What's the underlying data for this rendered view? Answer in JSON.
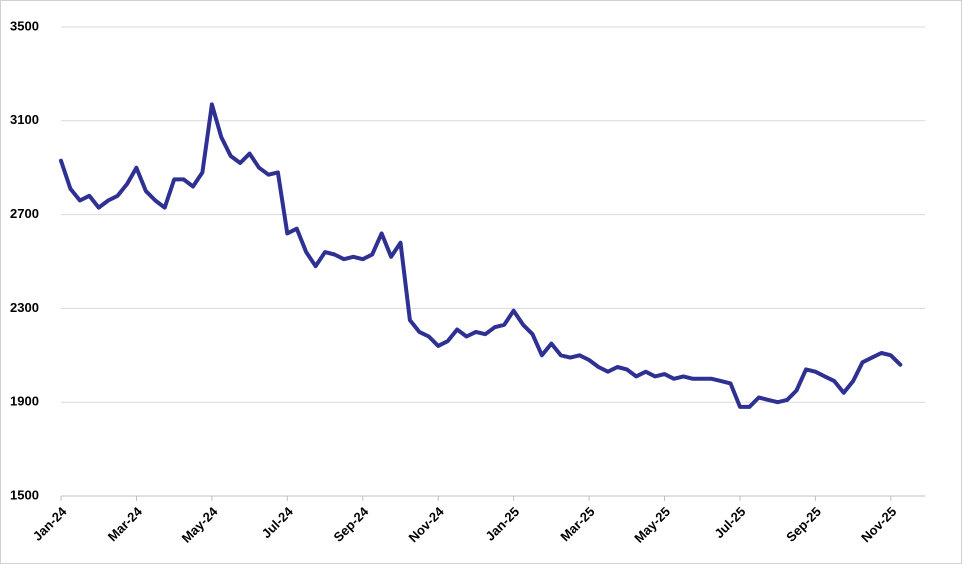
{
  "chart_data": {
    "type": "line",
    "categories": [
      "Jan-24",
      null,
      null,
      null,
      null,
      null,
      null,
      null,
      "Mar-24",
      null,
      null,
      null,
      null,
      null,
      null,
      null,
      "May-24",
      null,
      null,
      null,
      null,
      null,
      null,
      null,
      "Jul-24",
      null,
      null,
      null,
      null,
      null,
      null,
      null,
      "Sep-24",
      null,
      null,
      null,
      null,
      null,
      null,
      null,
      "Nov-24",
      null,
      null,
      null,
      null,
      null,
      null,
      null,
      "Jan-25",
      null,
      null,
      null,
      null,
      null,
      null,
      null,
      "Mar-25",
      null,
      null,
      null,
      null,
      null,
      null,
      null,
      "May-25",
      null,
      null,
      null,
      null,
      null,
      null,
      null,
      "Jul-25",
      null,
      null,
      null,
      null,
      null,
      null,
      null,
      "Sep-25",
      null,
      null,
      null,
      null,
      null,
      null,
      null,
      "Nov-25",
      null
    ],
    "series": [
      {
        "color": "#2e3192",
        "values": [
          2930,
          2810,
          2760,
          2780,
          2730,
          2760,
          2780,
          2830,
          2900,
          2800,
          2760,
          2730,
          2850,
          2850,
          2820,
          2880,
          3170,
          3030,
          2950,
          2920,
          2960,
          2900,
          2870,
          2880,
          2620,
          2640,
          2540,
          2480,
          2540,
          2530,
          2510,
          2520,
          2510,
          2530,
          2620,
          2520,
          2580,
          2250,
          2200,
          2180,
          2140,
          2160,
          2210,
          2180,
          2200,
          2190,
          2220,
          2230,
          2290,
          2230,
          2190,
          2100,
          2150,
          2100,
          2090,
          2100,
          2080,
          2050,
          2030,
          2050,
          2040,
          2010,
          2030,
          2010,
          2020,
          2000,
          2010,
          2000,
          2000,
          2000,
          1990,
          1980,
          1880,
          1880,
          1920,
          1910,
          1900,
          1910,
          1950,
          2040,
          2030,
          2010,
          1990,
          1940,
          1990,
          2070,
          2090,
          2110,
          2100,
          2060
        ]
      }
    ],
    "ylim": [
      1500,
      3500
    ],
    "yticks": [
      1500,
      1900,
      2300,
      2700,
      3100,
      3500
    ],
    "grid": true
  }
}
